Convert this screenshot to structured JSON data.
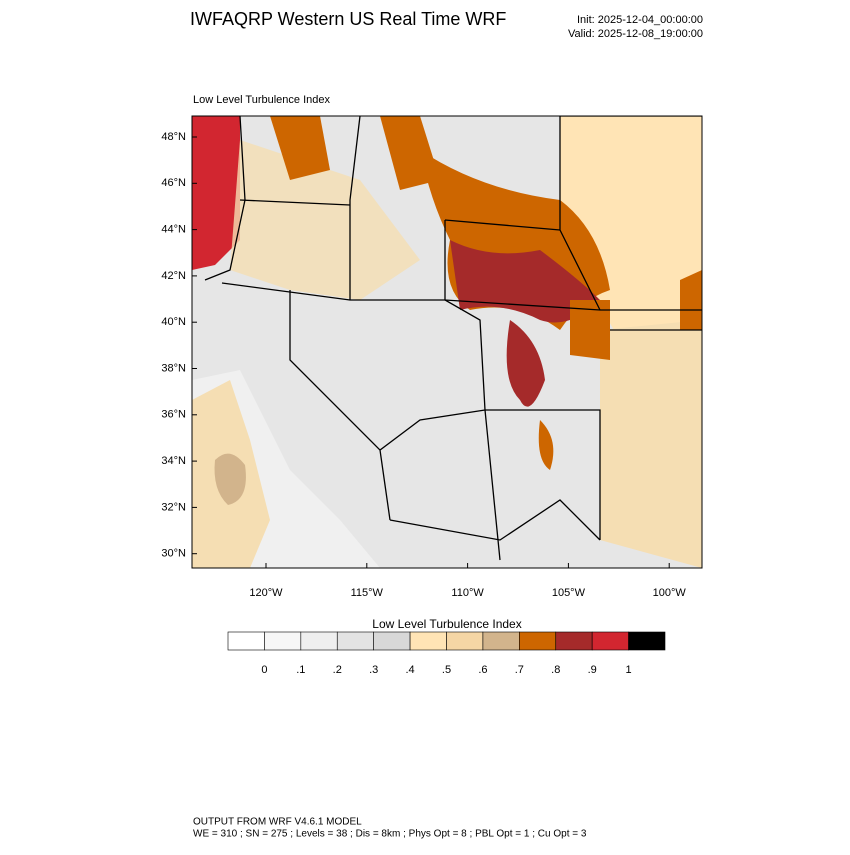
{
  "header": {
    "title": "IWFAQRP Western US Real Time WRF",
    "init": "Init: 2025-12-04_00:00:00",
    "valid": "Valid: 2025-12-08_19:00:00"
  },
  "map": {
    "subtitle": "Low Level Turbulence Index",
    "lat_labels": [
      "48°N",
      "46°N",
      "44°N",
      "42°N",
      "40°N",
      "38°N",
      "36°N",
      "34°N",
      "32°N",
      "30°N"
    ],
    "lon_labels": [
      "120°W",
      "115°W",
      "110°W",
      "105°W",
      "100°W"
    ]
  },
  "colorbar": {
    "title": "Low Level Turbulence Index",
    "labels": [
      "0",
      ".1",
      ".2",
      ".3",
      ".4",
      ".5",
      ".6",
      ".7",
      ".8",
      ".9",
      "1"
    ],
    "colors": [
      "#ffffff",
      "#f7f7f7",
      "#efefef",
      "#e3e3e3",
      "#d8d8d8",
      "#ffe4b5",
      "#f5d6a5",
      "#d2b48c",
      "#cd6600",
      "#a52a2a",
      "#d22630",
      "#000000"
    ]
  },
  "footer": {
    "line1": "OUTPUT FROM WRF V4.6.1 MODEL",
    "line2": "WE = 310 ; SN = 275 ; Levels = 38 ; Dis = 8km ; Phys Opt = 8 ; PBL Opt = 1 ; Cu Opt = 3"
  }
}
